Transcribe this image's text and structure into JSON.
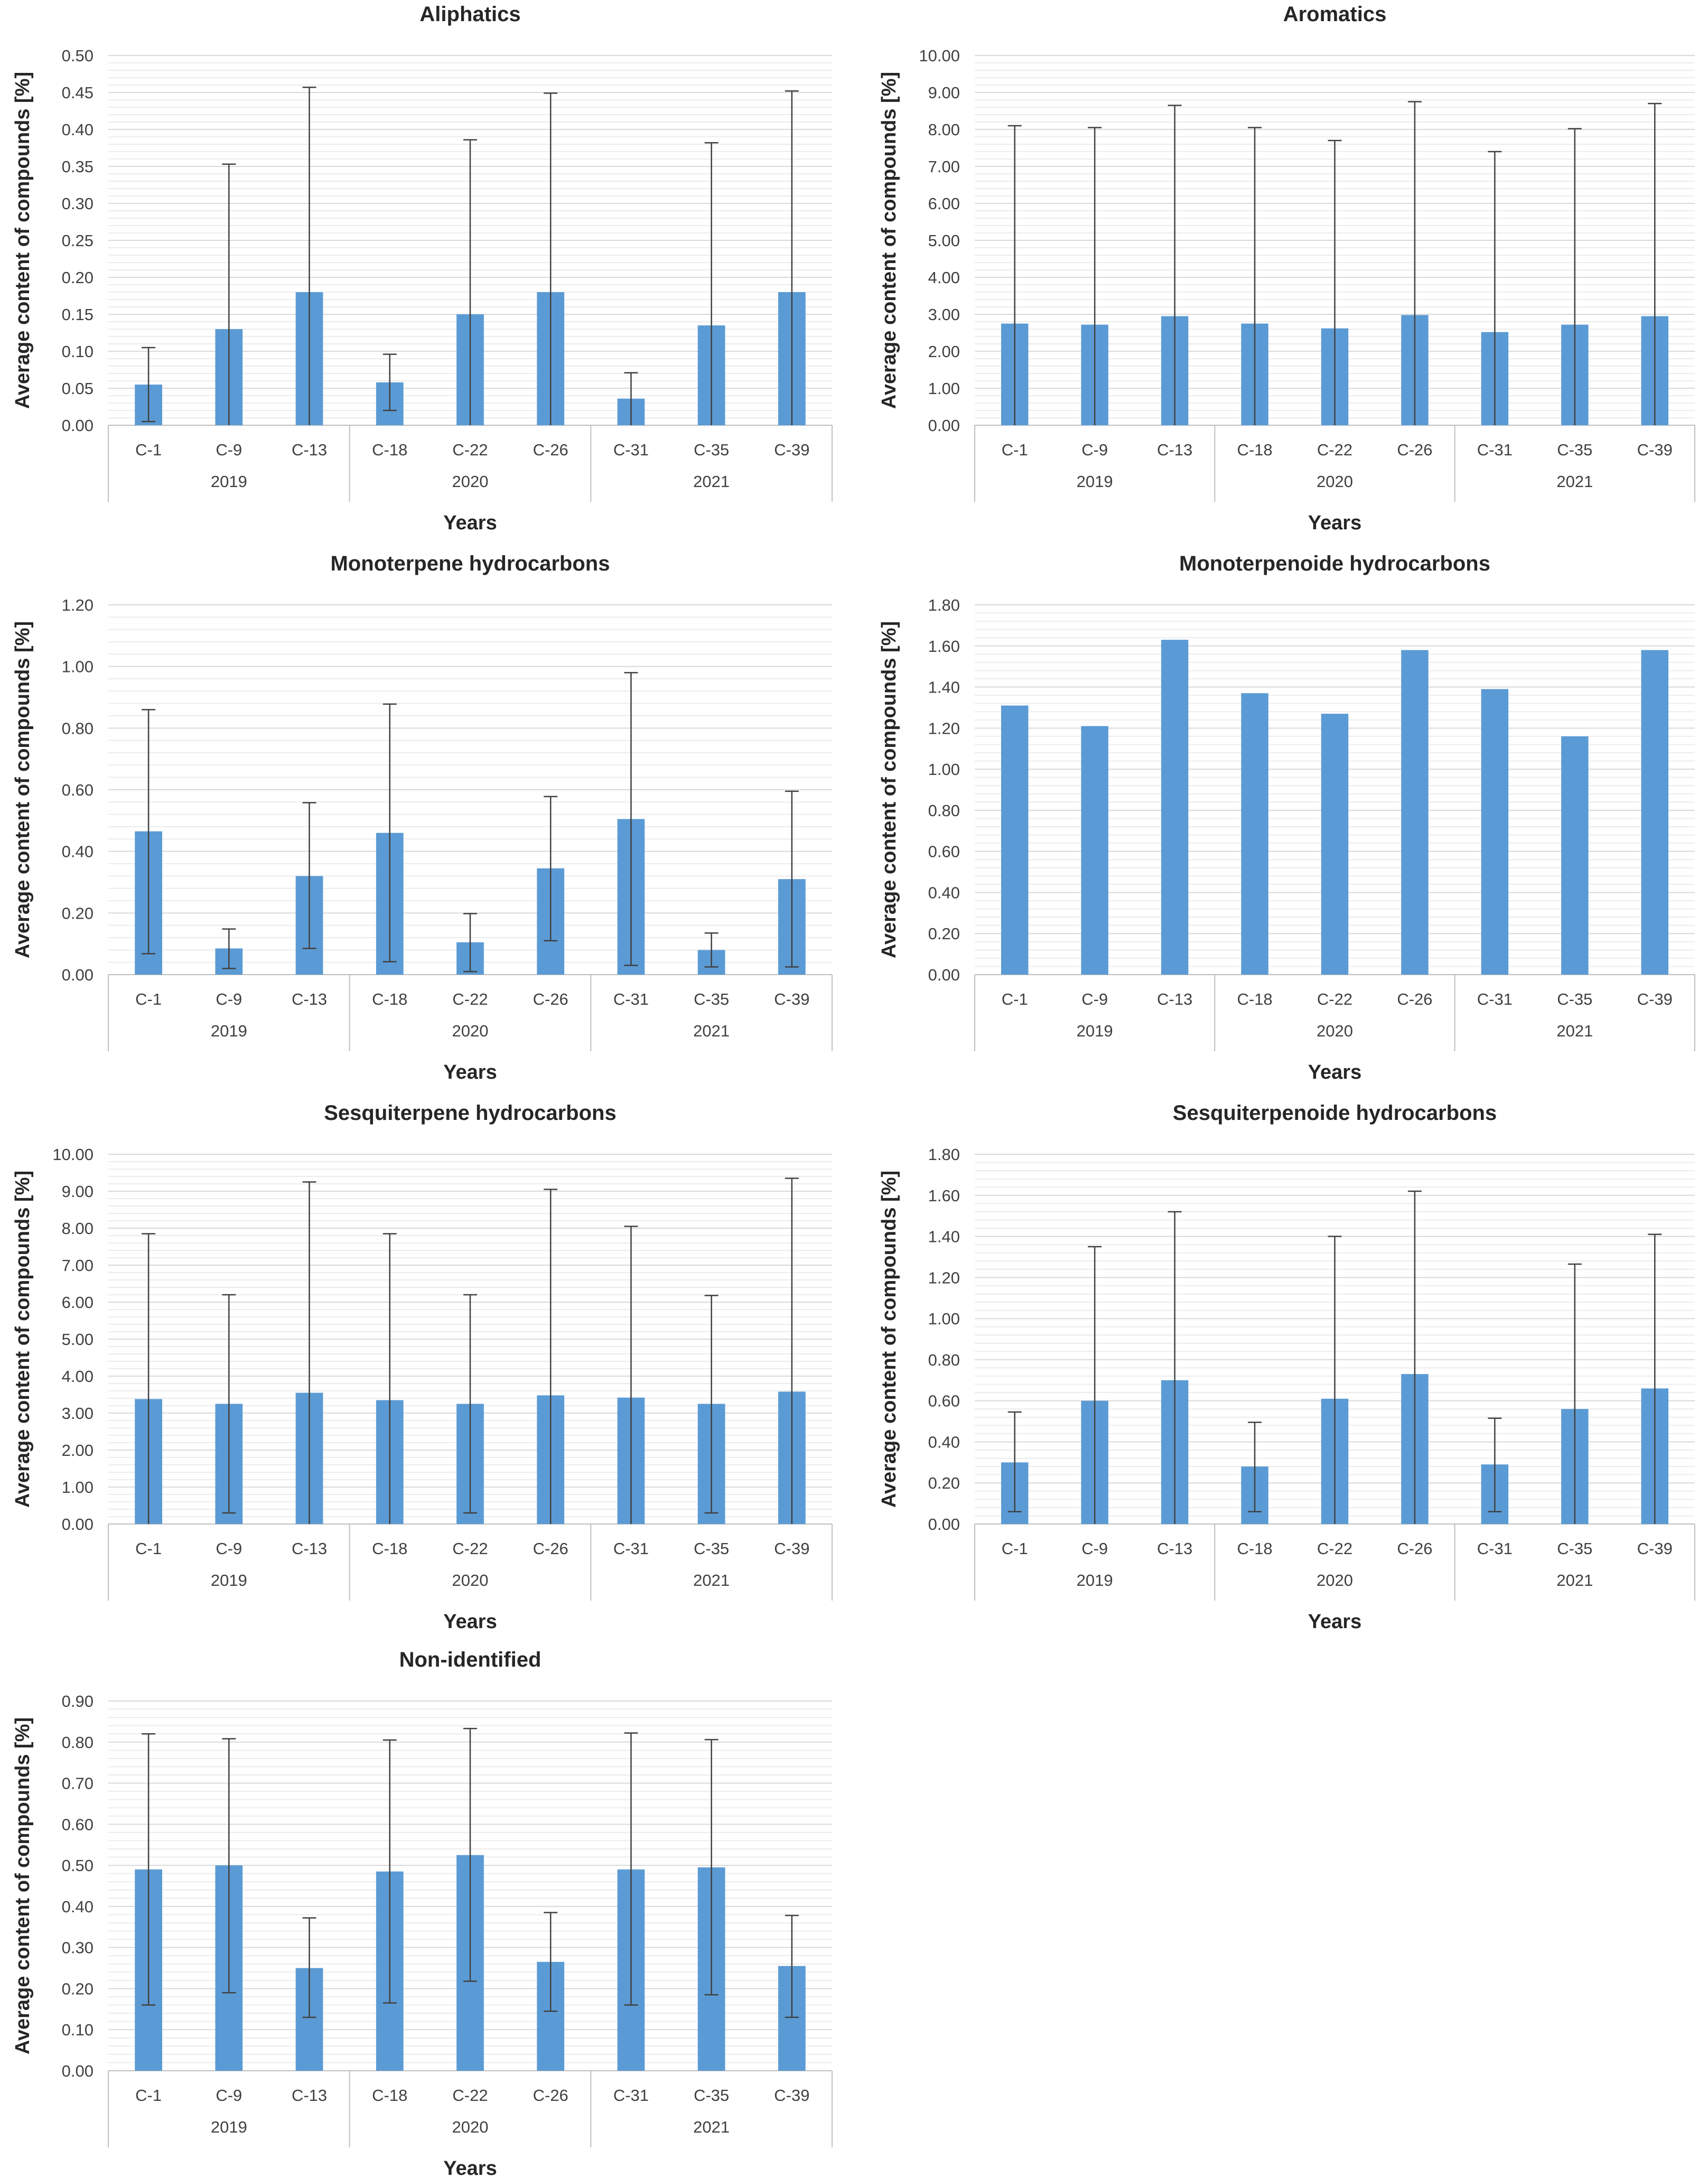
{
  "chart_data": [
    {
      "id": "aliphatics",
      "type": "bar",
      "title": "Aliphatics",
      "ylabel": "Average content of compounds  [%]",
      "xlabel": "Years",
      "categories": [
        "C-1",
        "C-9",
        "C-13",
        "C-18",
        "C-22",
        "C-26",
        "C-31",
        "C-35",
        "C-39"
      ],
      "groups": [
        {
          "label": "2019",
          "span": 3
        },
        {
          "label": "2020",
          "span": 3
        },
        {
          "label": "2021",
          "span": 3
        }
      ],
      "values": [
        0.055,
        0.13,
        0.18,
        0.058,
        0.15,
        0.18,
        0.036,
        0.135,
        0.18
      ],
      "error_upper": [
        0.105,
        0.353,
        0.457,
        0.096,
        0.386,
        0.449,
        0.071,
        0.382,
        0.452
      ],
      "error_lower": [
        0.005,
        0.0,
        0.0,
        0.02,
        0.0,
        0.0,
        0.0,
        0.0,
        0.0
      ],
      "ylim": [
        0,
        0.5
      ],
      "yticks": [
        "0.00",
        "0.05",
        "0.10",
        "0.15",
        "0.20",
        "0.25",
        "0.30",
        "0.35",
        "0.40",
        "0.45",
        "0.50"
      ]
    },
    {
      "id": "aromatics",
      "type": "bar",
      "title": "Aromatics",
      "ylabel": "Average content of compounds  [%]",
      "xlabel": "Years",
      "categories": [
        "C-1",
        "C-9",
        "C-13",
        "C-18",
        "C-22",
        "C-26",
        "C-31",
        "C-35",
        "C-39"
      ],
      "groups": [
        {
          "label": "2019",
          "span": 3
        },
        {
          "label": "2020",
          "span": 3
        },
        {
          "label": "2021",
          "span": 3
        }
      ],
      "values": [
        2.75,
        2.72,
        2.95,
        2.75,
        2.62,
        2.98,
        2.52,
        2.72,
        2.95
      ],
      "error_upper": [
        8.1,
        8.05,
        8.65,
        8.05,
        7.7,
        8.75,
        7.4,
        8.02,
        8.7
      ],
      "error_lower": [
        0,
        0,
        0,
        0,
        0,
        0,
        0,
        0,
        0
      ],
      "ylim": [
        0,
        10
      ],
      "yticks": [
        "0.00",
        "1.00",
        "2.00",
        "3.00",
        "4.00",
        "5.00",
        "6.00",
        "7.00",
        "8.00",
        "9.00",
        "10.00"
      ]
    },
    {
      "id": "monoterpene",
      "type": "bar",
      "title": "Monoterpene hydrocarbons",
      "ylabel": "Average content of compounds  [%]",
      "xlabel": "Years",
      "categories": [
        "C-1",
        "C-9",
        "C-13",
        "C-18",
        "C-22",
        "C-26",
        "C-31",
        "C-35",
        "C-39"
      ],
      "groups": [
        {
          "label": "2019",
          "span": 3
        },
        {
          "label": "2020",
          "span": 3
        },
        {
          "label": "2021",
          "span": 3
        }
      ],
      "values": [
        0.465,
        0.085,
        0.32,
        0.46,
        0.105,
        0.345,
        0.505,
        0.08,
        0.31
      ],
      "error_upper": [
        0.86,
        0.148,
        0.558,
        0.878,
        0.198,
        0.578,
        0.98,
        0.135,
        0.595
      ],
      "error_lower": [
        0.068,
        0.02,
        0.085,
        0.042,
        0.01,
        0.11,
        0.03,
        0.025,
        0.025
      ],
      "ylim": [
        0,
        1.2
      ],
      "yticks": [
        "0.00",
        "0.20",
        "0.40",
        "0.60",
        "0.80",
        "1.00",
        "1.20"
      ]
    },
    {
      "id": "monoterpenoide",
      "type": "bar",
      "title": "Monoterpenoide hydrocarbons",
      "ylabel": "Average content of compounds  [%]",
      "xlabel": "Years",
      "categories": [
        "C-1",
        "C-9",
        "C-13",
        "C-18",
        "C-22",
        "C-26",
        "C-31",
        "C-35",
        "C-39"
      ],
      "groups": [
        {
          "label": "2019",
          "span": 3
        },
        {
          "label": "2020",
          "span": 3
        },
        {
          "label": "2021",
          "span": 3
        }
      ],
      "values": [
        1.31,
        1.21,
        1.63,
        1.37,
        1.27,
        1.58,
        1.39,
        1.16,
        1.58
      ],
      "error_upper": null,
      "error_lower": null,
      "ylim": [
        0,
        1.8
      ],
      "yticks": [
        "0.00",
        "0.20",
        "0.40",
        "0.60",
        "0.80",
        "1.00",
        "1.20",
        "1.40",
        "1.60",
        "1.80"
      ]
    },
    {
      "id": "sesquiterpene",
      "type": "bar",
      "title": "Sesquiterpene hydrocarbons",
      "ylabel": "Average content of compounds  [%]",
      "xlabel": "Years",
      "categories": [
        "C-1",
        "C-9",
        "C-13",
        "C-18",
        "C-22",
        "C-26",
        "C-31",
        "C-35",
        "C-39"
      ],
      "groups": [
        {
          "label": "2019",
          "span": 3
        },
        {
          "label": "2020",
          "span": 3
        },
        {
          "label": "2021",
          "span": 3
        }
      ],
      "values": [
        3.38,
        3.25,
        3.55,
        3.35,
        3.25,
        3.48,
        3.42,
        3.25,
        3.58
      ],
      "error_upper": [
        7.85,
        6.2,
        9.25,
        7.85,
        6.2,
        9.05,
        8.05,
        6.18,
        9.35
      ],
      "error_lower": [
        0,
        0.3,
        0,
        0,
        0.3,
        0,
        0,
        0.3,
        0
      ],
      "ylim": [
        0,
        10
      ],
      "yticks": [
        "0.00",
        "1.00",
        "2.00",
        "3.00",
        "4.00",
        "5.00",
        "6.00",
        "7.00",
        "8.00",
        "9.00",
        "10.00"
      ]
    },
    {
      "id": "sesquiterpenoide",
      "type": "bar",
      "title": "Sesquiterpenoide hydrocarbons",
      "ylabel": "Average content of compounds  [%]",
      "xlabel": "Years",
      "categories": [
        "C-1",
        "C-9",
        "C-13",
        "C-18",
        "C-22",
        "C-26",
        "C-31",
        "C-35",
        "C-39"
      ],
      "groups": [
        {
          "label": "2019",
          "span": 3
        },
        {
          "label": "2020",
          "span": 3
        },
        {
          "label": "2021",
          "span": 3
        }
      ],
      "values": [
        0.3,
        0.6,
        0.7,
        0.28,
        0.61,
        0.73,
        0.29,
        0.56,
        0.66
      ],
      "error_upper": [
        0.545,
        1.35,
        1.52,
        0.495,
        1.4,
        1.62,
        0.515,
        1.265,
        1.41
      ],
      "error_lower": [
        0.06,
        0.0,
        0.0,
        0.06,
        0.0,
        0.0,
        0.06,
        0.0,
        0.0
      ],
      "ylim": [
        0,
        1.8
      ],
      "yticks": [
        "0.00",
        "0.20",
        "0.40",
        "0.60",
        "0.80",
        "1.00",
        "1.20",
        "1.40",
        "1.60",
        "1.80"
      ]
    },
    {
      "id": "nonidentified",
      "type": "bar",
      "title": "Non-identified",
      "ylabel": "Average content of compounds  [%]",
      "xlabel": "Years",
      "categories": [
        "C-1",
        "C-9",
        "C-13",
        "C-18",
        "C-22",
        "C-26",
        "C-31",
        "C-35",
        "C-39"
      ],
      "groups": [
        {
          "label": "2019",
          "span": 3
        },
        {
          "label": "2020",
          "span": 3
        },
        {
          "label": "2021",
          "span": 3
        }
      ],
      "values": [
        0.49,
        0.5,
        0.25,
        0.485,
        0.525,
        0.265,
        0.49,
        0.495,
        0.255
      ],
      "error_upper": [
        0.82,
        0.808,
        0.372,
        0.805,
        0.833,
        0.385,
        0.822,
        0.806,
        0.378
      ],
      "error_lower": [
        0.16,
        0.19,
        0.13,
        0.165,
        0.218,
        0.145,
        0.16,
        0.185,
        0.13
      ],
      "ylim": [
        0,
        0.9
      ],
      "yticks": [
        "0.00",
        "0.10",
        "0.20",
        "0.30",
        "0.40",
        "0.50",
        "0.60",
        "0.70",
        "0.80",
        "0.90"
      ]
    }
  ],
  "style": {
    "bar_color": "#5b9bd5",
    "grid_color": "#d9d9d9",
    "axis_color": "#bfbfbf",
    "error_color": "#404040"
  }
}
